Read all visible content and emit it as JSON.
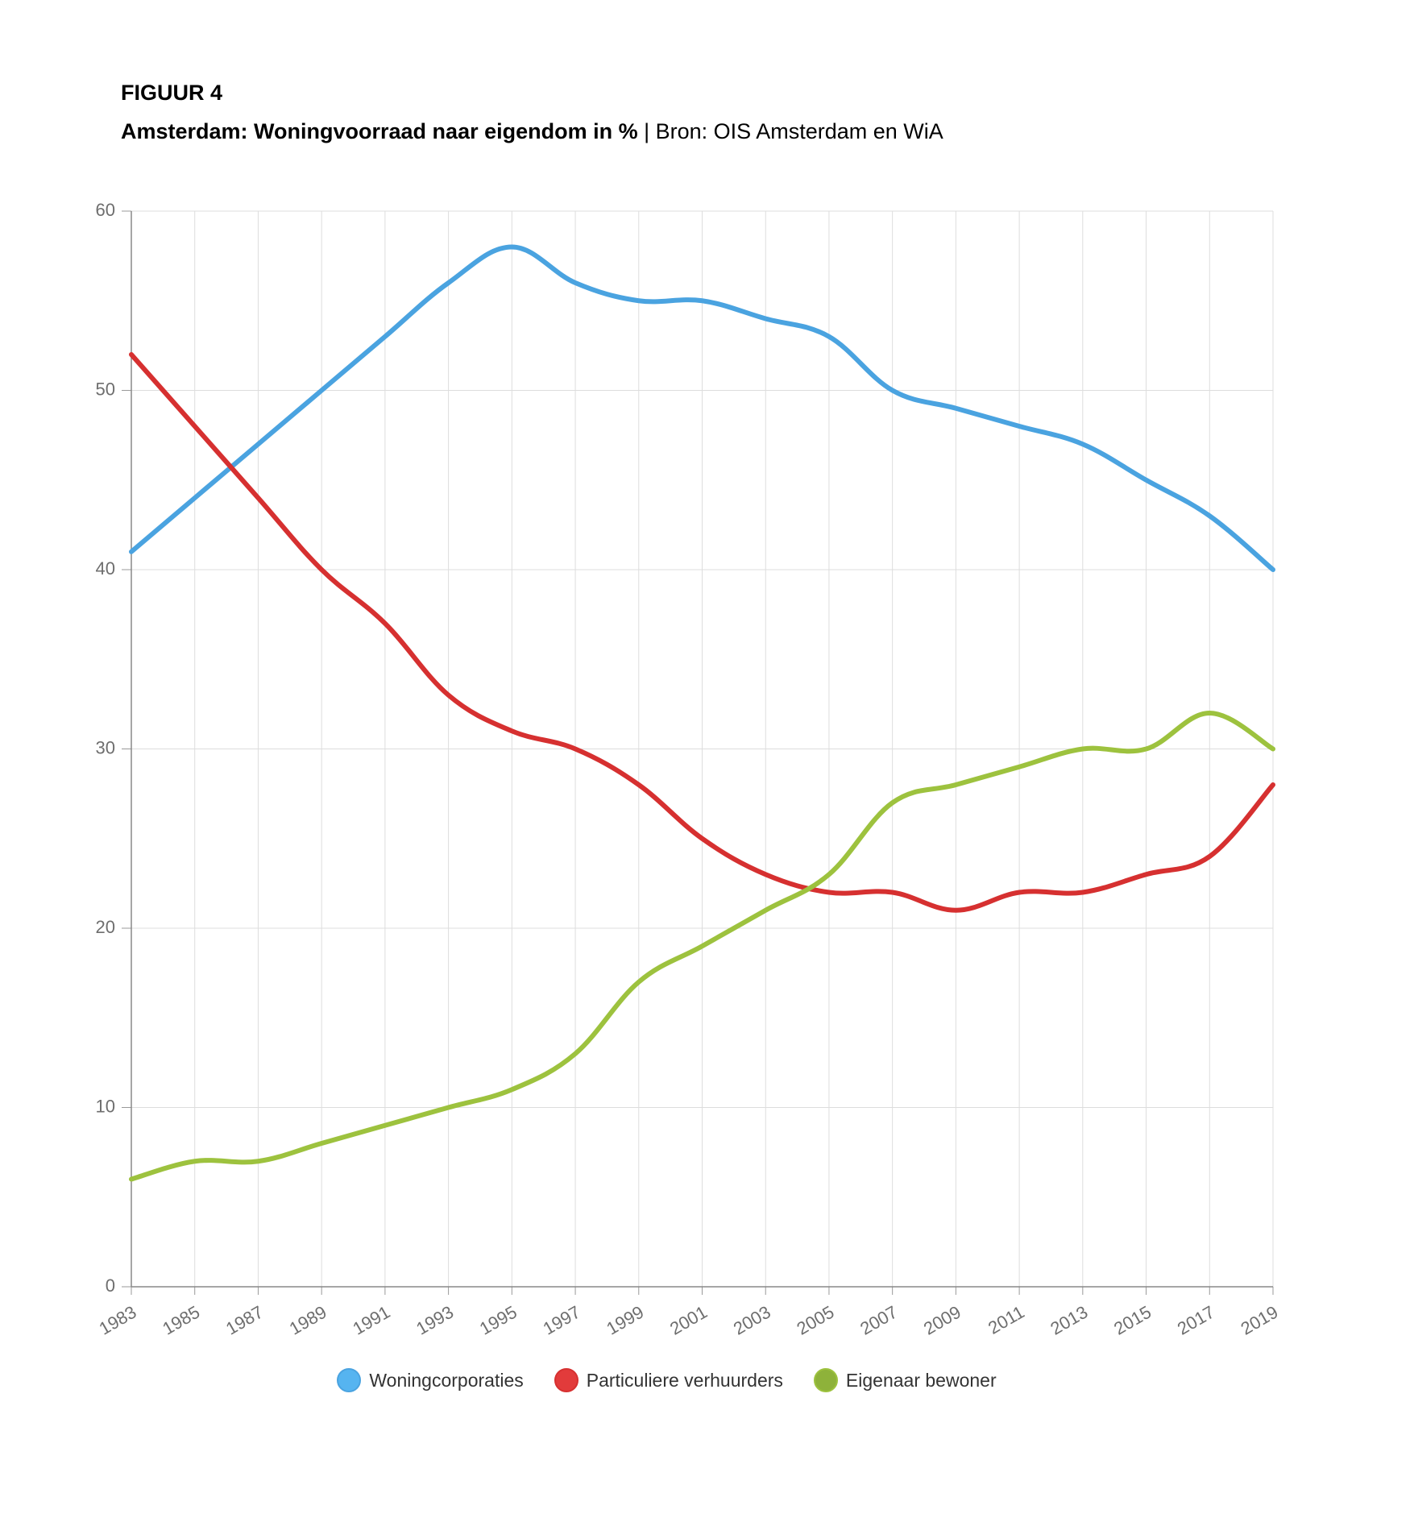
{
  "figure": {
    "label": "FIGUUR 4",
    "title": "Amsterdam: Woningvoorraad naar eigendom in %",
    "separator": " | ",
    "source": "Bron: OIS Amsterdam en WiA"
  },
  "chart_data": {
    "type": "line",
    "x": [
      1983,
      1985,
      1987,
      1989,
      1991,
      1993,
      1995,
      1997,
      1999,
      2001,
      2003,
      2005,
      2007,
      2009,
      2011,
      2013,
      2015,
      2017,
      2019
    ],
    "x_tick_labels": [
      "1983",
      "1985",
      "1987",
      "1989",
      "1991",
      "1993",
      "1995",
      "1997",
      "1999",
      "2001",
      "2003",
      "2005",
      "2007",
      "2009",
      "2011",
      "2013",
      "2015",
      "2017",
      "2019"
    ],
    "y_tick_labels": [
      "0",
      "10",
      "20",
      "30",
      "40",
      "50",
      "60"
    ],
    "y_ticks": [
      0,
      10,
      20,
      30,
      40,
      50,
      60
    ],
    "ylim": [
      0,
      60
    ],
    "xlim": [
      1983,
      2019
    ],
    "grid": true,
    "legend_position": "bottom",
    "series": [
      {
        "name": "Woningcorporaties",
        "color": "#4aa3e0",
        "legend_color": "#56b4f0",
        "values": [
          41,
          44,
          47,
          50,
          53,
          56,
          58,
          56,
          55,
          55,
          54,
          53,
          50,
          49,
          48,
          47,
          45,
          43,
          40
        ]
      },
      {
        "name": "Particuliere verhuurders",
        "color": "#d63030",
        "legend_color": "#e23b3b",
        "values": [
          52,
          48,
          44,
          40,
          37,
          33,
          31,
          30,
          28,
          25,
          23,
          22,
          22,
          21,
          22,
          22,
          23,
          24,
          28
        ]
      },
      {
        "name": "Eigenaar bewoner",
        "color": "#9dc23e",
        "legend_color": "#8eb23a",
        "values": [
          6,
          7,
          7,
          8,
          9,
          10,
          11,
          13,
          17,
          19,
          21,
          23,
          27,
          28,
          29,
          30,
          30,
          32,
          30
        ]
      }
    ]
  }
}
